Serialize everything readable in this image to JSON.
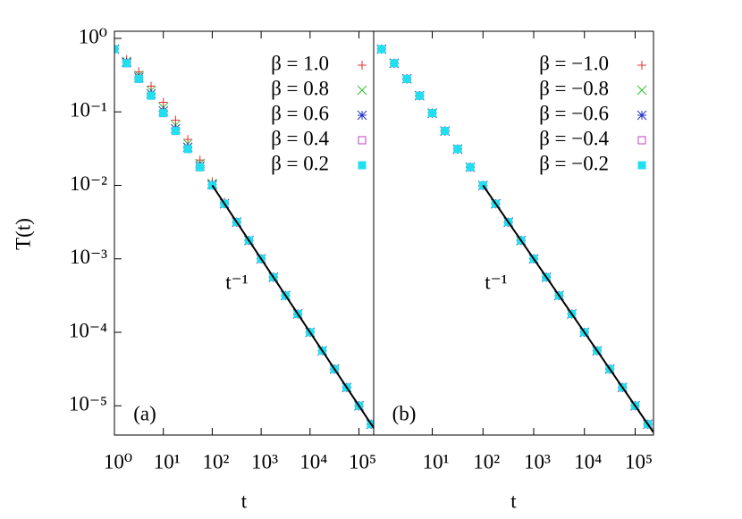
{
  "chart_data": [
    {
      "type": "scatter",
      "log_x": true,
      "log_y": true,
      "y_label": "T(t)",
      "x_label": "t",
      "panel_label": "(a)",
      "legend": "top right",
      "xlim": [
        1,
        200000
      ],
      "ylim": [
        4e-06,
        1.25
      ],
      "xticks": [
        {
          "value": 1,
          "label": "10⁰"
        },
        {
          "value": 10,
          "label": "10¹"
        },
        {
          "value": 100,
          "label": "10²"
        },
        {
          "value": 1000,
          "label": "10³"
        },
        {
          "value": 10000,
          "label": "10⁴"
        },
        {
          "value": 100000,
          "label": "10⁵"
        }
      ],
      "yticks": [
        {
          "value": 1,
          "label": "10⁰"
        },
        {
          "value": 0.1,
          "label": "10⁻¹"
        },
        {
          "value": 0.01,
          "label": "10⁻²"
        },
        {
          "value": 0.001,
          "label": "10⁻³"
        },
        {
          "value": 0.0001,
          "label": "10⁻⁴"
        },
        {
          "value": 1e-05,
          "label": "10⁻⁵"
        }
      ],
      "x": [
        1,
        1.778,
        3.162,
        5.623,
        10,
        17.78,
        31.62,
        56.23,
        100,
        177.8,
        316.2,
        562.3,
        1000,
        1778,
        3162,
        5623,
        10000,
        17783,
        31623,
        56234,
        100000,
        177828
      ],
      "series": [
        {
          "name": "β = 1.0",
          "color": "#e03030",
          "marker": "plus",
          "values": [
            0.714,
            0.514,
            0.351,
            0.224,
            0.135,
            0.077,
            0.0421,
            0.0221,
            0.0112,
            0.00589,
            0.00316,
            0.001778,
            0.001,
            0.000562,
            0.000316,
            0.0001778,
            0.0001,
            5.62e-05,
            3.16e-05,
            1.778e-05,
            1e-05,
            5.62e-06
          ]
        },
        {
          "name": "β = 0.8",
          "color": "#30c030",
          "marker": "cross",
          "values": [
            0.714,
            0.487,
            0.315,
            0.196,
            0.115,
            0.066,
            0.0368,
            0.0198,
            0.0106,
            0.00561,
            0.00316,
            0.001778,
            0.001,
            0.000562,
            0.000316,
            0.0001778,
            0.0001,
            5.62e-05,
            3.16e-05,
            1.778e-05,
            1e-05,
            5.62e-06
          ]
        },
        {
          "name": "β = 0.6",
          "color": "#2030c0",
          "marker": "star",
          "values": [
            0.714,
            0.473,
            0.295,
            0.177,
            0.103,
            0.059,
            0.0331,
            0.0184,
            0.0102,
            0.00561,
            0.00316,
            0.001778,
            0.001,
            0.000562,
            0.000316,
            0.0001778,
            0.0001,
            5.62e-05,
            3.16e-05,
            1.778e-05,
            1e-05,
            5.62e-06
          ]
        },
        {
          "name": "β = 0.4",
          "color": "#c040c0",
          "marker": "open-square",
          "values": [
            0.714,
            0.459,
            0.281,
            0.166,
            0.0962,
            0.055,
            0.0312,
            0.01766,
            0.00996,
            0.00561,
            0.00316,
            0.001778,
            0.001,
            0.000562,
            0.000316,
            0.0001778,
            0.0001,
            5.62e-05,
            3.16e-05,
            1.778e-05,
            1e-05,
            5.62e-06
          ]
        },
        {
          "name": "β = 0.2",
          "color": "#20e0f0",
          "marker": "filled-square",
          "values": [
            0.714,
            0.459,
            0.281,
            0.166,
            0.0962,
            0.055,
            0.0312,
            0.01766,
            0.00996,
            0.00561,
            0.00316,
            0.001778,
            0.001,
            0.000562,
            0.000316,
            0.0001778,
            0.0001,
            5.62e-05,
            3.16e-05,
            1.778e-05,
            1e-05,
            5.62e-06
          ]
        }
      ],
      "fit": {
        "label": "t⁻¹",
        "color": "#000000",
        "x": [
          100,
          200000
        ],
        "values": [
          0.01,
          5e-06
        ]
      }
    },
    {
      "type": "scatter",
      "log_x": true,
      "log_y": true,
      "x_label": "t",
      "panel_label": "(b)",
      "legend": "top right",
      "xlim": [
        0.7,
        230000
      ],
      "ylim": [
        4e-06,
        1.25
      ],
      "xticks": [
        {
          "value": 10,
          "label": "10¹"
        },
        {
          "value": 100,
          "label": "10²"
        },
        {
          "value": 1000,
          "label": "10³"
        },
        {
          "value": 10000,
          "label": "10⁴"
        },
        {
          "value": 100000,
          "label": "10⁵"
        }
      ],
      "x": [
        1,
        1.778,
        3.162,
        5.623,
        10,
        17.78,
        31.62,
        56.23,
        100,
        177.8,
        316.2,
        562.3,
        1000,
        1778,
        3162,
        5623,
        10000,
        17783,
        31623,
        56234,
        100000,
        177828
      ],
      "series": [
        {
          "name": "β = −1.0",
          "color": "#e03030",
          "marker": "plus",
          "values": [
            0.714,
            0.459,
            0.281,
            0.166,
            0.0962,
            0.055,
            0.0312,
            0.01766,
            0.00996,
            0.00561,
            0.00316,
            0.001778,
            0.001,
            0.000562,
            0.000316,
            0.0001778,
            0.0001,
            5.62e-05,
            3.16e-05,
            1.778e-05,
            1e-05,
            5.62e-06
          ]
        },
        {
          "name": "β = −0.8",
          "color": "#30c030",
          "marker": "cross",
          "values": [
            0.714,
            0.459,
            0.281,
            0.166,
            0.0962,
            0.055,
            0.0312,
            0.01766,
            0.00996,
            0.00561,
            0.00316,
            0.001778,
            0.001,
            0.000562,
            0.000316,
            0.0001778,
            0.0001,
            5.62e-05,
            3.16e-05,
            1.778e-05,
            1e-05,
            5.62e-06
          ]
        },
        {
          "name": "β = −0.6",
          "color": "#2030c0",
          "marker": "star",
          "values": [
            0.714,
            0.459,
            0.281,
            0.166,
            0.0962,
            0.055,
            0.0312,
            0.01766,
            0.00996,
            0.00561,
            0.00316,
            0.001778,
            0.001,
            0.000562,
            0.000316,
            0.0001778,
            0.0001,
            5.62e-05,
            3.16e-05,
            1.778e-05,
            1e-05,
            5.62e-06
          ]
        },
        {
          "name": "β = −0.4",
          "color": "#c040c0",
          "marker": "open-square",
          "values": [
            0.714,
            0.459,
            0.281,
            0.166,
            0.0962,
            0.055,
            0.0312,
            0.01766,
            0.00996,
            0.00561,
            0.00316,
            0.001778,
            0.001,
            0.000562,
            0.000316,
            0.0001778,
            0.0001,
            5.62e-05,
            3.16e-05,
            1.778e-05,
            1e-05,
            5.62e-06
          ]
        },
        {
          "name": "β = −0.2",
          "color": "#20e0f0",
          "marker": "filled-square",
          "values": [
            0.714,
            0.459,
            0.281,
            0.166,
            0.0962,
            0.055,
            0.0312,
            0.01766,
            0.00996,
            0.00561,
            0.00316,
            0.001778,
            0.001,
            0.000562,
            0.000316,
            0.0001778,
            0.0001,
            5.62e-05,
            3.16e-05,
            1.778e-05,
            1e-05,
            5.62e-06
          ]
        }
      ],
      "fit": {
        "label": "t⁻¹",
        "color": "#000000",
        "x": [
          100,
          230000
        ],
        "values": [
          0.01,
          4.35e-06
        ]
      }
    }
  ]
}
